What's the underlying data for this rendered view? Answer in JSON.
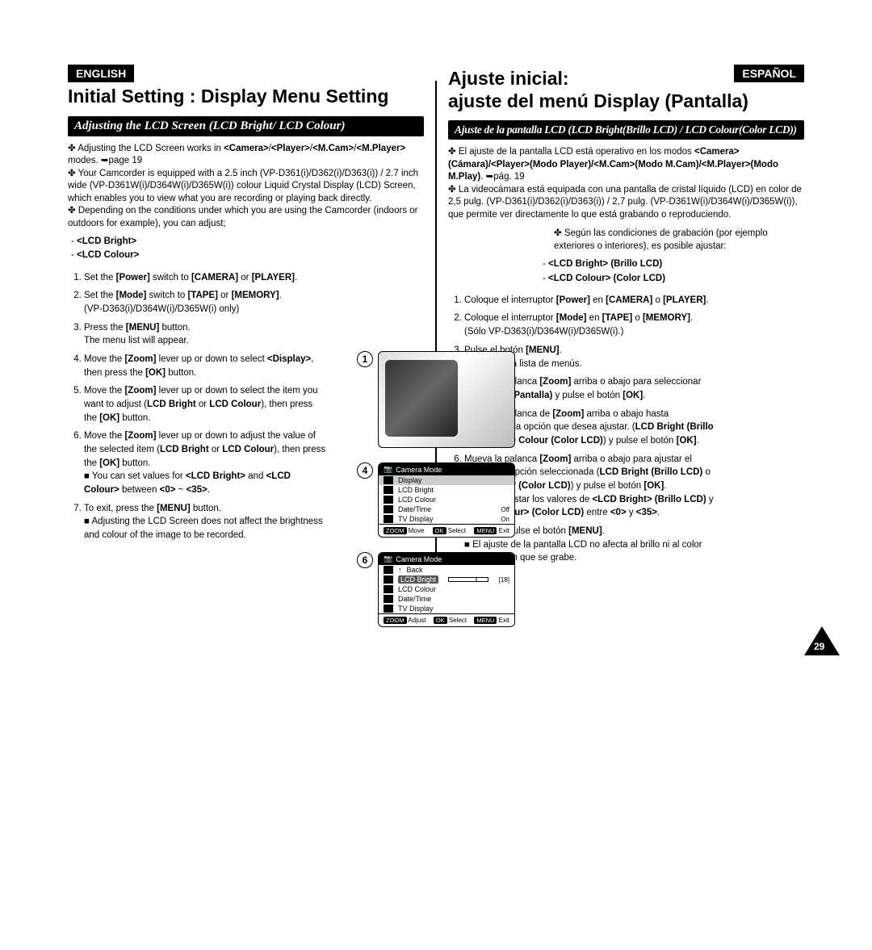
{
  "page_number": "29",
  "colors": {
    "bg": "#ffffff",
    "ink": "#000000",
    "badge_bg": "#000000",
    "badge_fg": "#ffffff",
    "menu_hl": "#cccccc"
  },
  "left": {
    "lang": "ENGLISH",
    "title": "Initial Setting : Display Menu Setting",
    "subtitle": "Adjusting the LCD Screen (LCD Bright/ LCD Colour)",
    "intro_html": "✤ Adjusting the LCD Screen works in <b>&lt;Camera&gt;</b>/<b>&lt;Player&gt;</b>/<b>&lt;M.Cam&gt;</b>/<b>&lt;M.Player&gt;</b> modes. ➥page 19<br>✤ Your Camcorder is equipped with a 2.5 inch (VP-D361(i)/D362(i)/D363(i)) / 2.7 inch wide (VP-D361W(i)/D364W(i)/D365W(i)) colour Liquid Crystal Display (LCD) Screen, which enables you to view what you are recording or playing back directly.<br>✤ Depending on the conditions under which you are using the Camcorder (indoors or outdoors for example), you can adjust;",
    "bullets": [
      "<LCD Bright>",
      "<LCD Colour>"
    ],
    "steps": [
      "Set the <b>[Power]</b> switch to <b>[CAMERA]</b> or <b>[PLAYER]</b>.",
      "Set the <b>[Mode]</b> switch to <b>[TAPE]</b> or <b>[MEMORY]</b>.<br><span class='sub'>(VP-D363(i)/D364W(i)/D365W(i) only)</span>",
      "Press the <b>[MENU]</b> button.<br><span class='sub'>The menu list will appear.</span>",
      "Move the <b>[Zoom]</b> lever up or down to select <b>&lt;Display&gt;</b>, then press the <b>[OK]</b> button.",
      "Move the <b>[Zoom]</b> lever up or down to select the item you want to adjust (<b>LCD Bright</b> or <b>LCD Colour</b>), then press the <b>[OK]</b> button.",
      "Move the <b>[Zoom]</b> lever up or down to adjust the value of the selected item (<b>LCD Bright</b> or <b>LCD Colour</b>), then press the <b>[OK]</b> button.<br><span class='sub'>■ You can set values for <b>&lt;LCD Bright&gt;</b> and <b>&lt;LCD Colour&gt;</b> between <b>&lt;0&gt;</b> ~ <b>&lt;35&gt;</b>.</span>",
      "To exit, press the <b>[MENU]</b> button.<br><span class='sub'>■ Adjusting the LCD Screen does not affect the brightness and colour of the image to be recorded.</span>"
    ]
  },
  "right": {
    "lang": "ESPAÑOL",
    "title_line1": "Ajuste inicial:",
    "title_line2": "ajuste del menú Display (Pantalla)",
    "subtitle": "Ajuste de la pantalla LCD (LCD Bright(Brillo LCD) / LCD Colour(Color LCD))",
    "intro_html": "✤ El ajuste de la pantalla LCD está operativo en los modos <b>&lt;Camera&gt; (Cámara)/&lt;Player&gt;(Modo Player)/&lt;M.Cam&gt;(Modo M.Cam)/&lt;M.Player&gt;(Modo M.Play)</b>. ➥pág. 19<br>✤ La videocámara está equipada con una pantalla de cristal líquido (LCD) en color de 2,5 pulg. (VP-D361(i)/D362(i)/D363(i)) / 2,7 pulg. (VP-D361W(i)/D364W(i)/D365W(i)), que permite ver directamente lo que está grabando o reproduciendo.",
    "intro2_html": "✤ Según las condiciones de grabación (por ejemplo exteriores o interiores), es posible ajustar:",
    "bullets": [
      "<LCD Bright> (Brillo LCD)",
      "<LCD Colour> (Color LCD)"
    ],
    "steps": [
      "Coloque el interruptor <b>[Power]</b> en <b>[CAMERA]</b> o <b>[PLAYER]</b>.",
      "Coloque el interruptor <b>[Mode]</b> en <b>[TAPE]</b> o <b>[MEMORY]</b>. (Sólo VP-D363(i)/D364W(i)/D365W(i).)",
      "Pulse el botón <b>[MENU]</b>.<br><span class='sub'>Aparecerá la lista de menús.</span>",
      "Mueva la palanca <b>[Zoom]</b> arriba o abajo para seleccionar <b>&lt;Display&gt; (Pantalla)</b> y pulse el botón <b>[OK]</b>.",
      "Mueva la palanca de <b>[Zoom]</b> arriba o abajo hasta seleccionar la opción que desea ajustar. (<b>LCD Bright (Brillo LCD)</b> o <b>LCD Colour (Color LCD)</b>) y pulse el botón <b>[OK]</b>.",
      "Mueva la palanca <b>[Zoom]</b> arriba o abajo para ajustar el valor de la opción seleccionada (<b>LCD Bright (Brillo LCD)</b> o <b>LCD Colour (Color LCD)</b>) y pulse el botón <b>[OK]</b>.<br><span class='sub'>■ Puede ajustar los valores de <b>&lt;LCD Bright&gt; (Brillo LCD)</b> y <b>&lt; LCD Colour&gt; (Color LCD)</b> entre <b>&lt;0&gt;</b> y <b>&lt;35&gt;</b>.</span>",
      "Para salir, pulse el botón <b>[MENU]</b>.<br><span class='sub'>■ El ajuste de la pantalla LCD no afecta al brillo ni al color de la imagen que se grabe.</span>"
    ]
  },
  "figures": {
    "n1": "1",
    "n4": "4",
    "n6": "6",
    "menu4": {
      "head": "Camera Mode",
      "rows": [
        {
          "label": "Display",
          "hl": true
        },
        {
          "label": "LCD Bright"
        },
        {
          "label": "LCD Colour"
        },
        {
          "label": "Date/Time",
          "val": "Off"
        },
        {
          "label": "TV Display",
          "val": "On"
        }
      ],
      "bottom": {
        "zoom": "ZOOM",
        "zoom_l": "Move",
        "ok": "OK",
        "ok_l": "Select",
        "menu": "MENU",
        "menu_l": "Exit"
      }
    },
    "menu6": {
      "head": "Camera Mode",
      "back": "Back",
      "selected": "LCD Bright",
      "selected_val": "[18]",
      "rows": [
        {
          "label": "LCD Colour"
        },
        {
          "label": "Date/Time"
        },
        {
          "label": "TV Display"
        }
      ],
      "bottom": {
        "zoom": "ZOOM",
        "zoom_l": "Adjust",
        "ok": "OK",
        "ok_l": "Select",
        "menu": "MENU",
        "menu_l": "Exit"
      }
    }
  }
}
